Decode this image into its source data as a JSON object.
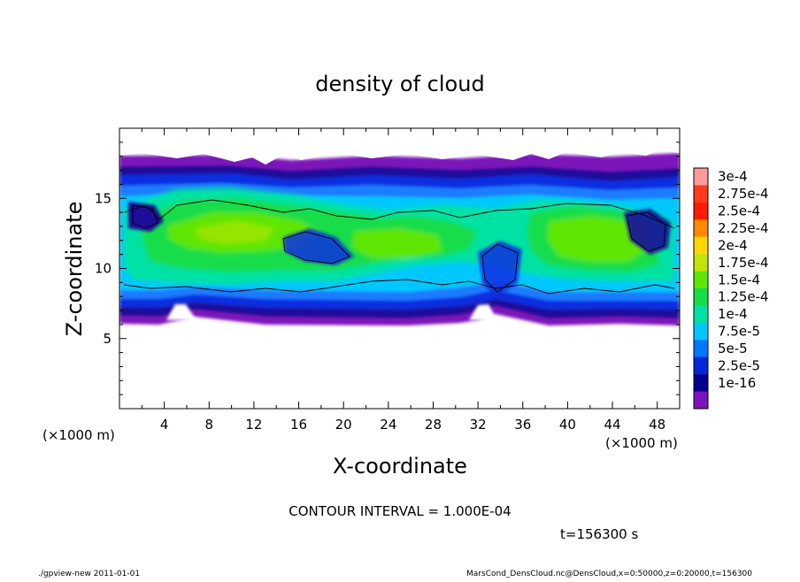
{
  "chart_data": {
    "type": "heatmap",
    "title": "density of cloud",
    "xlabel": "X-coordinate",
    "ylabel": "Z-coordinate",
    "x_unit_left": "(×1000 m)",
    "x_unit_right": "(×1000 m)",
    "xlim": [
      0,
      50
    ],
    "ylim": [
      0,
      20
    ],
    "x_ticks": [
      "4",
      "8",
      "12",
      "16",
      "20",
      "24",
      "28",
      "32",
      "36",
      "40",
      "44",
      "48"
    ],
    "y_ticks": [
      "5",
      "10",
      "15"
    ],
    "colorbar_labels": [
      "3e-4",
      "2.75e-4",
      "2.5e-4",
      "2.25e-4",
      "2e-4",
      "1.75e-4",
      "1.5e-4",
      "1.25e-4",
      "1e-4",
      "7.5e-5",
      "5e-5",
      "2.5e-5",
      "1e-16"
    ],
    "colorbar_colors": [
      "#ff9a9a",
      "#ff3b1a",
      "#ff1d00",
      "#ff8a00",
      "#ffd800",
      "#c2e400",
      "#5ee600",
      "#14dd48",
      "#00e2a4",
      "#00c8ff",
      "#0078ff",
      "#0028d8",
      "#000090",
      "#7d14ba"
    ],
    "cloud_band_z": [
      6.2,
      18.2
    ],
    "contour_interval": "CONTOUR INTERVAL = 1.000E-04",
    "time": "t=156300 s"
  },
  "footer": {
    "left": "./gpview-new  2011-01-01",
    "right": "MarsCond_DensCloud.nc@DensCloud,x=0:50000,z=0:20000,t=156300"
  }
}
